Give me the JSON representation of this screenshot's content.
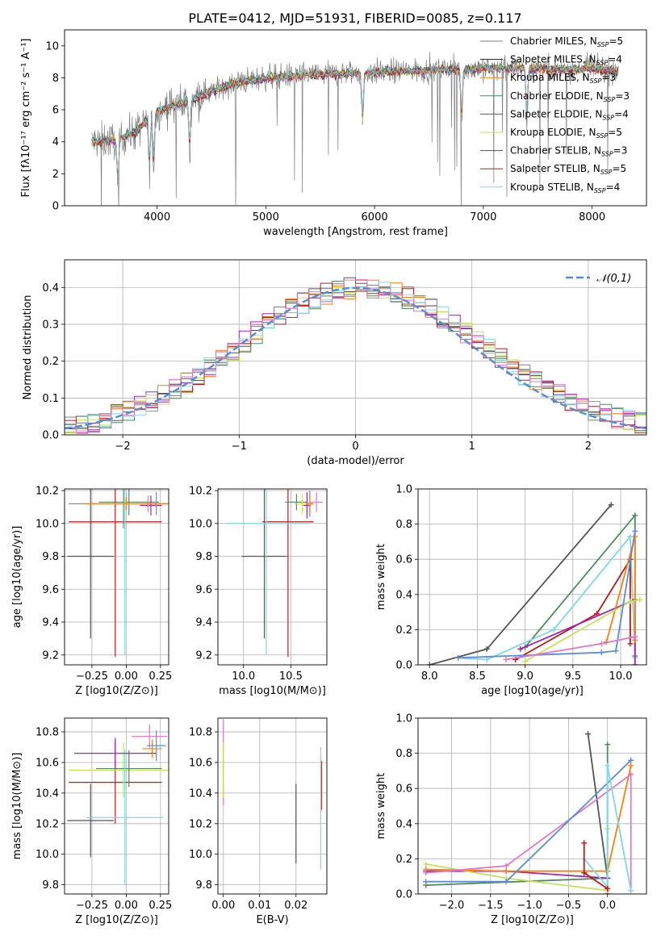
{
  "figure_title": "PLATE=0412, MJD=51931, FIBERID=0085, z=0.117",
  "colors": {
    "chabrier_miles": "#7f7f7f",
    "salpeter_miles": "#1f1f1f",
    "kroupa_miles": "#ff7f0e",
    "chabrier_elodie": "#4d8a5e",
    "salpeter_elodie": "#9c27b0",
    "kroupa_elodie": "#c6e05a",
    "chabrier_stelib": "#555555",
    "salpeter_stelib": "#b71c1c",
    "kroupa_stelib": "#80d8e0",
    "normal_curve": "#5b8dd6",
    "pink": "#e377c2",
    "blue": "#5b8dd6",
    "grid": "#b0b0b0"
  },
  "chart_data": [
    {
      "type": "line",
      "panel": "spectrum",
      "xlabel": "wavelength [Angstrom, rest frame]",
      "ylabel": "Flux [fλ10⁻¹⁷ erg cm⁻² s⁻¹ A⁻¹]",
      "xlim": [
        3150,
        8500
      ],
      "ylim": [
        0,
        11
      ],
      "xticks": [
        4000,
        5000,
        6000,
        7000,
        8000
      ],
      "yticks": [
        0,
        2,
        4,
        6,
        8,
        10
      ],
      "grid": false,
      "legend": "top-right",
      "legend_entries": [
        {
          "label": "Chabrier MILES, N",
          "sub": "SSP",
          "tail": "=5",
          "color_key": "chabrier_miles"
        },
        {
          "label": "Salpeter MILES, N",
          "sub": "SSP",
          "tail": "=4",
          "color_key": "salpeter_miles"
        },
        {
          "label": "Kroupa MILES, N",
          "sub": "SSP",
          "tail": "=3",
          "color_key": "kroupa_miles"
        },
        {
          "label": "Chabrier ELODIE, N",
          "sub": "SSP",
          "tail": "=3",
          "color_key": "chabrier_elodie"
        },
        {
          "label": "Salpeter ELODIE, N",
          "sub": "SSP",
          "tail": "=4",
          "color_key": "salpeter_elodie"
        },
        {
          "label": "Kroupa ELODIE, N",
          "sub": "SSP",
          "tail": "=5",
          "color_key": "kroupa_elodie"
        },
        {
          "label": "Chabrier STELIB, N",
          "sub": "SSP",
          "tail": "=3",
          "color_key": "chabrier_stelib"
        },
        {
          "label": "Salpeter STELIB, N",
          "sub": "SSP",
          "tail": "=5",
          "color_key": "salpeter_stelib"
        },
        {
          "label": "Kroupa STELIB, N",
          "sub": "SSP",
          "tail": "=4",
          "color_key": "kroupa_stelib"
        }
      ],
      "continuum": [
        [
          3400,
          4.0
        ],
        [
          3600,
          4.1
        ],
        [
          3800,
          4.6
        ],
        [
          3900,
          5.3
        ],
        [
          4000,
          5.9
        ],
        [
          4200,
          6.4
        ],
        [
          4400,
          6.9
        ],
        [
          4600,
          7.4
        ],
        [
          4800,
          7.8
        ],
        [
          5000,
          8.0
        ],
        [
          5400,
          8.2
        ],
        [
          5800,
          8.3
        ],
        [
          6200,
          8.4
        ],
        [
          6600,
          8.5
        ],
        [
          7000,
          8.6
        ],
        [
          7400,
          8.6
        ],
        [
          7800,
          8.5
        ],
        [
          8000,
          8.6
        ],
        [
          8240,
          8.4
        ]
      ],
      "absorption_lines": [
        3640,
        3930,
        3968,
        4300,
        5890,
        6800,
        7400
      ]
    },
    {
      "type": "line",
      "panel": "residual-histogram",
      "xlabel": "(data-model)/error",
      "ylabel": "Normed distribution",
      "xlim": [
        -2.5,
        2.5
      ],
      "ylim": [
        0,
        0.475
      ],
      "xticks": [
        -2,
        -1,
        0,
        1,
        2
      ],
      "yticks": [
        0.0,
        0.1,
        0.2,
        0.3,
        0.4
      ],
      "grid": true,
      "legend": "top-right",
      "legend_label": "𝒩(0,1)",
      "bin_width": 0.1
    },
    {
      "type": "scatter",
      "panel": "Z-vs-age",
      "xlabel": "Z [log10(Z/Z⊙)]",
      "ylabel": "age [log10(age/yr)]",
      "xlim": [
        -0.45,
        0.31
      ],
      "ylim": [
        9.14,
        10.21
      ],
      "xticks": [
        -0.25,
        0.0,
        0.25
      ],
      "yticks": [
        9.2,
        9.4,
        9.6,
        9.8,
        10.0,
        10.2
      ],
      "grid": true,
      "points": [
        {
          "x": -0.26,
          "y": 9.8,
          "xerr": 0.17,
          "yerr": 0.5,
          "color_key": "chabrier_stelib"
        },
        {
          "x": -0.08,
          "y": 10.01,
          "xerr": 0.34,
          "yerr": 0.82,
          "color_key": "salpeter_stelib"
        },
        {
          "x": -0.02,
          "y": 10.12,
          "xerr": 0.4,
          "yerr": 0.15,
          "color_key": "chabrier_miles"
        },
        {
          "x": 0.02,
          "y": 10.13,
          "xerr": 0.22,
          "yerr": 0.08,
          "color_key": "chabrier_elodie"
        },
        {
          "x": -0.01,
          "y": 10.12,
          "xerr": 0.12,
          "yerr": 0.92,
          "color_key": "kroupa_stelib"
        },
        {
          "x": 0.18,
          "y": 10.11,
          "xerr": 0.08,
          "yerr": 0.06,
          "color_key": "salpeter_elodie"
        },
        {
          "x": 0.22,
          "y": 10.12,
          "xerr": 0.07,
          "yerr": 0.07,
          "color_key": "blue"
        },
        {
          "x": 0.16,
          "y": 10.12,
          "xerr": 0.05,
          "yerr": 0.05,
          "color_key": "pink"
        },
        {
          "x": 0.0,
          "y": 10.12,
          "xerr": 0.3,
          "yerr": 0.04,
          "color_key": "kroupa_miles"
        }
      ]
    },
    {
      "type": "scatter",
      "panel": "mass-vs-age",
      "xlabel": "mass [log10(M/M⊙)]",
      "ylabel": "",
      "xlim": [
        9.73,
        10.88
      ],
      "ylim": [
        9.14,
        10.21
      ],
      "xticks": [
        10.0,
        10.5
      ],
      "yticks": [
        9.2,
        9.4,
        9.6,
        9.8,
        10.0,
        10.2
      ],
      "grid": true,
      "points": [
        {
          "x": 10.22,
          "y": 9.8,
          "xerr": 0.24,
          "yerr": 0.5,
          "color_key": "chabrier_stelib"
        },
        {
          "x": 10.47,
          "y": 10.01,
          "xerr": 0.27,
          "yerr": 0.82,
          "color_key": "salpeter_stelib"
        },
        {
          "x": 10.24,
          "y": 10.0,
          "xerr": 0.44,
          "yerr": 0.8,
          "color_key": "kroupa_stelib"
        },
        {
          "x": 10.56,
          "y": 10.13,
          "xerr": 0.12,
          "yerr": 0.05,
          "color_key": "chabrier_elodie"
        },
        {
          "x": 10.62,
          "y": 10.12,
          "xerr": 0.08,
          "yerr": 0.06,
          "color_key": "kroupa_elodie"
        },
        {
          "x": 10.67,
          "y": 10.11,
          "xerr": 0.04,
          "yerr": 0.08,
          "color_key": "salpeter_elodie"
        },
        {
          "x": 10.7,
          "y": 10.12,
          "xerr": 0.03,
          "yerr": 0.08,
          "color_key": "blue"
        },
        {
          "x": 10.77,
          "y": 10.13,
          "xerr": 0.07,
          "yerr": 0.06,
          "color_key": "pink"
        },
        {
          "x": 10.7,
          "y": 10.12,
          "xerr": 0.04,
          "yerr": 0.06,
          "color_key": "kroupa_miles"
        }
      ]
    },
    {
      "type": "line",
      "panel": "age-vs-mass-weight",
      "xlabel": "age [log10(age/yr)]",
      "ylabel": "mass weight",
      "xlim": [
        7.88,
        10.27
      ],
      "ylim": [
        0,
        1.0
      ],
      "xticks": [
        8.0,
        8.5,
        9.0,
        9.5,
        10.0
      ],
      "yticks": [
        0.0,
        0.2,
        0.4,
        0.6,
        0.8,
        1.0
      ],
      "grid": true,
      "series": [
        {
          "color_key": "chabrier_stelib",
          "x": [
            8.0,
            8.6,
            9.9
          ],
          "y": [
            0.0,
            0.09,
            0.91
          ]
        },
        {
          "color_key": "chabrier_elodie",
          "x": [
            9.0,
            10.15,
            10.15
          ],
          "y": [
            0.1,
            0.85,
            0.05
          ]
        },
        {
          "color_key": "kroupa_stelib",
          "x": [
            8.3,
            8.6,
            9.3,
            10.1,
            10.15
          ],
          "y": [
            0.04,
            0.03,
            0.2,
            0.73,
            0.04
          ]
        },
        {
          "color_key": "salpeter_stelib",
          "x": [
            8.9,
            9.75,
            10.1,
            10.1
          ],
          "y": [
            0.03,
            0.29,
            0.6,
            0.12
          ]
        },
        {
          "color_key": "salpeter_elodie",
          "x": [
            8.95,
            10.15,
            10.15
          ],
          "y": [
            0.09,
            0.37,
            0.0
          ]
        },
        {
          "color_key": "kroupa_miles",
          "x": [
            9.85,
            10.15,
            10.15
          ],
          "y": [
            0.13,
            0.73,
            0.14
          ]
        },
        {
          "color_key": "kroupa_elodie",
          "x": [
            9.0,
            10.1,
            10.2
          ],
          "y": [
            0.02,
            0.36,
            0.37
          ]
        },
        {
          "color_key": "blue",
          "x": [
            8.3,
            9.8,
            9.95,
            10.15
          ],
          "y": [
            0.04,
            0.07,
            0.08,
            0.76
          ]
        },
        {
          "color_key": "pink",
          "x": [
            8.8,
            9.8,
            10.15
          ],
          "y": [
            0.03,
            0.12,
            0.16
          ]
        }
      ]
    },
    {
      "type": "scatter",
      "panel": "Z-vs-mass",
      "xlabel": "Z [log10(Z/Z⊙)]",
      "ylabel": "mass [log10(M/M⊙)]",
      "xlim": [
        -0.45,
        0.31
      ],
      "ylim": [
        9.74,
        10.89
      ],
      "xticks": [
        -0.25,
        0.0,
        0.25
      ],
      "yticks": [
        9.8,
        10.0,
        10.2,
        10.4,
        10.6,
        10.8
      ],
      "grid": true,
      "points": [
        {
          "x": -0.26,
          "y": 10.22,
          "xerr": 0.17,
          "yerr": 0.24,
          "color_key": "chabrier_stelib"
        },
        {
          "x": -0.08,
          "y": 10.47,
          "xerr": 0.34,
          "yerr": 0.27,
          "color_key": "salpeter_stelib"
        },
        {
          "x": -0.02,
          "y": 10.55,
          "xerr": 0.4,
          "yerr": 0.18,
          "color_key": "kroupa_elodie"
        },
        {
          "x": 0.02,
          "y": 10.56,
          "xerr": 0.24,
          "yerr": 0.12,
          "color_key": "chabrier_elodie"
        },
        {
          "x": -0.01,
          "y": 10.24,
          "xerr": 0.28,
          "yerr": 0.44,
          "color_key": "kroupa_stelib"
        },
        {
          "x": -0.08,
          "y": 10.66,
          "xerr": 0.3,
          "yerr": 0.1,
          "color_key": "salpeter_elodie"
        },
        {
          "x": 0.19,
          "y": 10.69,
          "xerr": 0.07,
          "yerr": 0.06,
          "color_key": "kroupa_miles"
        },
        {
          "x": 0.17,
          "y": 10.77,
          "xerr": 0.13,
          "yerr": 0.08,
          "color_key": "pink"
        },
        {
          "x": 0.22,
          "y": 10.71,
          "xerr": 0.07,
          "yerr": 0.1,
          "color_key": "blue"
        }
      ]
    },
    {
      "type": "scatter",
      "panel": "EBV-vs-mass",
      "xlabel": "E(B-V)",
      "ylabel": "",
      "xlim": [
        -0.0015,
        0.0285
      ],
      "ylim": [
        9.74,
        10.89
      ],
      "xticks": [
        0.0,
        0.01,
        0.02
      ],
      "xticklabels": [
        "0.00",
        "0.01",
        "0.02"
      ],
      "yticks": [
        9.8,
        10.0,
        10.2,
        10.4,
        10.6,
        10.8
      ],
      "grid": true,
      "points": [
        {
          "x": 0.0,
          "y": 10.6,
          "xerr": 0,
          "yerr": 0.28,
          "color_key": "pink"
        },
        {
          "x": 0.0,
          "y": 10.55,
          "xerr": 0,
          "yerr": 0.18,
          "color_key": "kroupa_elodie"
        },
        {
          "x": 0.02,
          "y": 10.2,
          "xerr": 0,
          "yerr": 0.26,
          "color_key": "chabrier_stelib"
        },
        {
          "x": 0.027,
          "y": 10.45,
          "xerr": 0,
          "yerr": 0.16,
          "color_key": "salpeter_stelib"
        },
        {
          "x": 0.0268,
          "y": 10.3,
          "xerr": 0,
          "yerr": 0.4,
          "color_key": "kroupa_stelib"
        }
      ]
    },
    {
      "type": "line",
      "panel": "Z-vs-mass-weight",
      "xlabel": "Z [log10(Z/Z⊙)]",
      "ylabel": "mass weight",
      "xlim": [
        -2.43,
        0.5
      ],
      "ylim": [
        0,
        1.0
      ],
      "xticks": [
        -2.0,
        -1.5,
        -1.0,
        -0.5,
        0.0
      ],
      "yticks": [
        0.0,
        0.2,
        0.4,
        0.6,
        0.8,
        1.0
      ],
      "grid": true,
      "series": [
        {
          "color_key": "chabrier_stelib",
          "x": [
            -0.25,
            0.0
          ],
          "y": [
            0.91,
            0.09
          ]
        },
        {
          "color_key": "chabrier_elodie",
          "x": [
            -2.33,
            0.0,
            0.0
          ],
          "y": [
            0.05,
            0.09,
            0.85
          ]
        },
        {
          "color_key": "salpeter_elodie",
          "x": [
            -2.33,
            -1.3,
            0.0,
            0.0
          ],
          "y": [
            0.13,
            0.13,
            0.09,
            0.0
          ]
        },
        {
          "color_key": "kroupa_elodie",
          "x": [
            -2.33,
            -1.3,
            0.0,
            0.0
          ],
          "y": [
            0.17,
            0.09,
            0.02,
            0.37
          ]
        },
        {
          "color_key": "kroupa_miles",
          "x": [
            -2.33,
            -1.3,
            0.0,
            0.3
          ],
          "y": [
            0.14,
            0.13,
            0.13,
            0.73
          ]
        },
        {
          "color_key": "pink",
          "x": [
            -2.33,
            -1.3,
            0.3,
            0.3
          ],
          "y": [
            0.12,
            0.16,
            0.68,
            0.02
          ]
        },
        {
          "color_key": "blue",
          "x": [
            -2.33,
            -1.3,
            0.3
          ],
          "y": [
            0.07,
            0.07,
            0.76
          ]
        },
        {
          "color_key": "kroupa_stelib",
          "x": [
            -0.3,
            0.0,
            0.0,
            0.3
          ],
          "y": [
            0.2,
            0.04,
            0.73,
            0.02
          ]
        },
        {
          "color_key": "salpeter_stelib",
          "x": [
            -0.3,
            -0.3,
            0.0
          ],
          "y": [
            0.29,
            0.12,
            0.03
          ]
        }
      ]
    }
  ]
}
